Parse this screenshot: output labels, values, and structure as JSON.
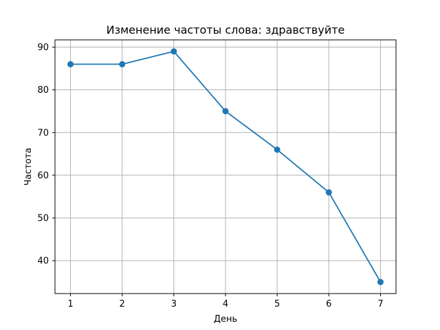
{
  "chart_data": {
    "type": "line",
    "title": "Изменение частоты слова: здравствуйте",
    "xlabel": "День",
    "ylabel": "Частота",
    "x": [
      1,
      2,
      3,
      4,
      5,
      6,
      7
    ],
    "series": [
      {
        "values": [
          86,
          86,
          89,
          75,
          66,
          56,
          35
        ],
        "color": "#1f77b4",
        "marker": "circle"
      }
    ],
    "xlim": [
      0.7,
      7.3
    ],
    "ylim": [
      32.3,
      91.7
    ],
    "xticks": [
      1,
      2,
      3,
      4,
      5,
      6,
      7
    ],
    "yticks": [
      40,
      50,
      60,
      70,
      80,
      90
    ],
    "grid": true,
    "legend": "none"
  }
}
